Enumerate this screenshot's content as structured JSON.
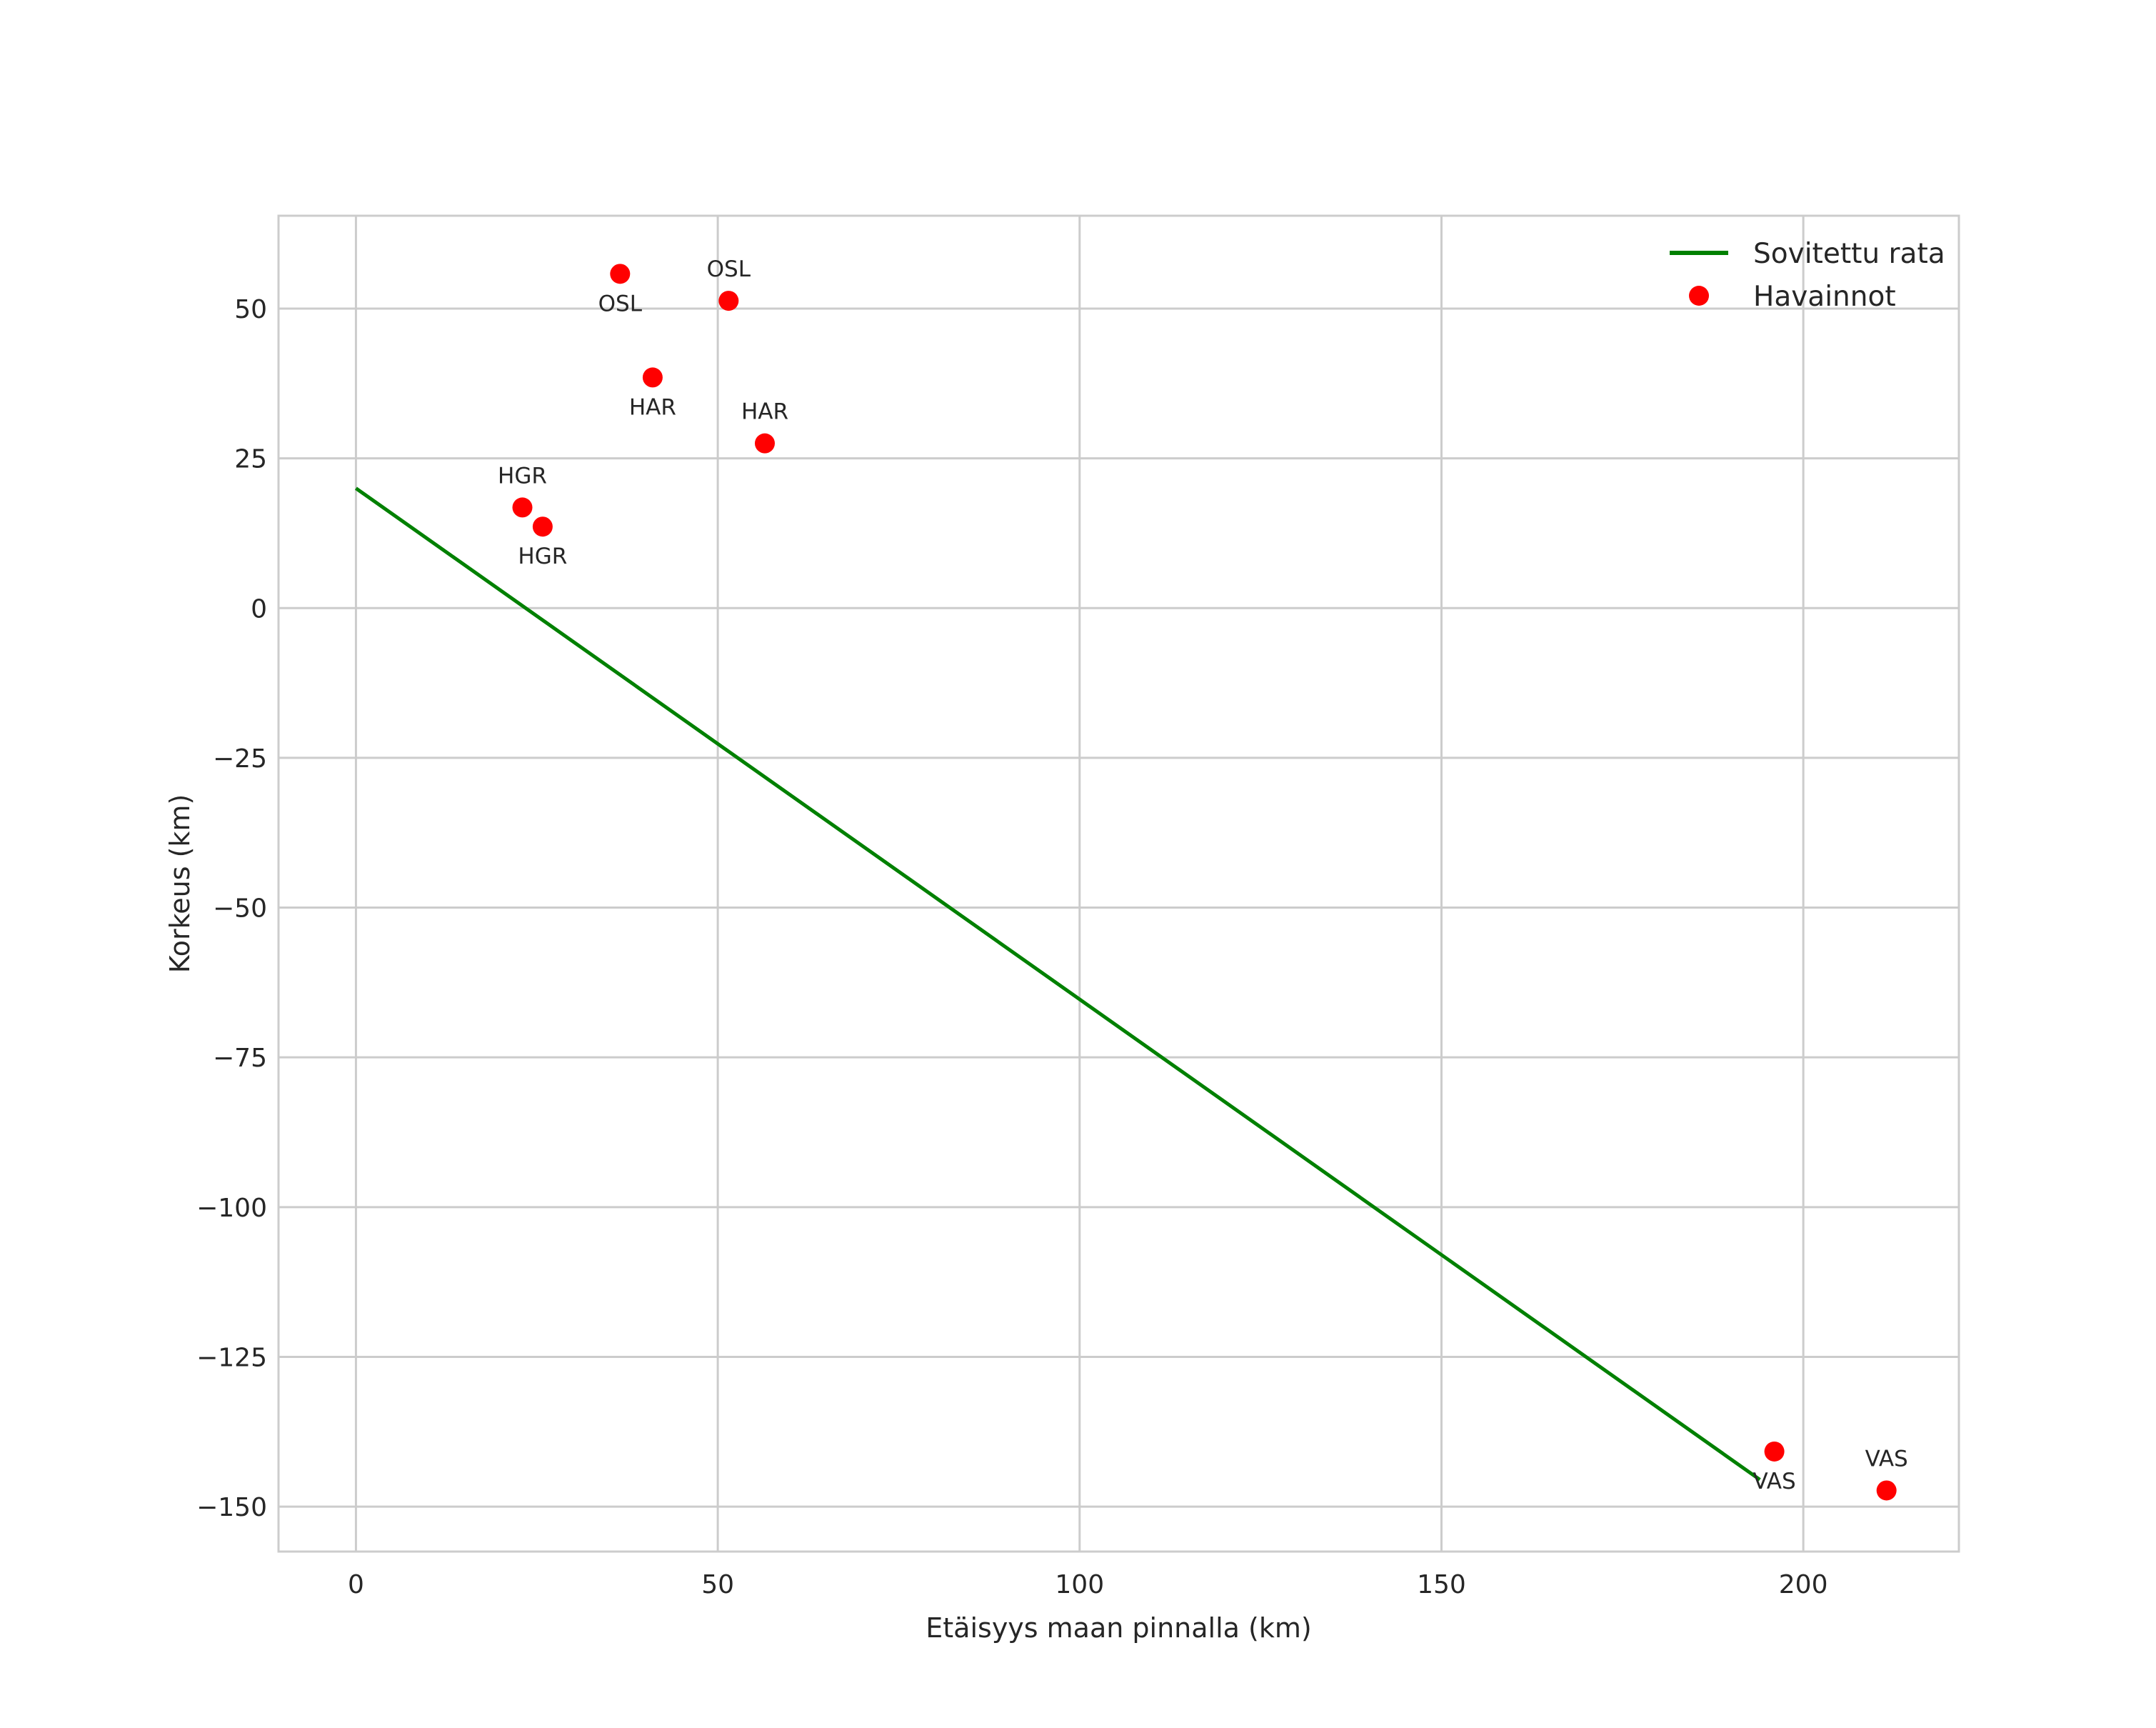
{
  "chart_data": {
    "type": "scatter",
    "title": "",
    "xlabel": "Etäisyys maan pinnalla (km)",
    "ylabel": "Korkeus (km)",
    "xlim": [
      -10.7,
      221.5
    ],
    "ylim": [
      -157.5,
      65.5
    ],
    "xticks": [
      0,
      50,
      100,
      150,
      200
    ],
    "yticks": [
      50,
      25,
      0,
      -25,
      -50,
      -75,
      -100,
      -125,
      -150
    ],
    "xtick_labels": [
      "0",
      "50",
      "100",
      "150",
      "200"
    ],
    "ytick_labels": [
      "50",
      "25",
      "0",
      "−25",
      "−50",
      "−75",
      "−100",
      "−125",
      "−150"
    ],
    "grid": true,
    "legend": {
      "position": "top-right",
      "entries": [
        "Sovitettu rata",
        "Havainnot"
      ]
    },
    "series": [
      {
        "name": "Sovitettu rata",
        "kind": "line",
        "color": "#008000",
        "x": [
          0,
          194
        ],
        "y": [
          20.0,
          -145.5
        ]
      },
      {
        "name": "Havainnot",
        "kind": "scatter",
        "color": "#ff0000",
        "points": [
          {
            "x": 36.5,
            "y": 55.8,
            "label": "OSL",
            "label_pos": "below"
          },
          {
            "x": 51.5,
            "y": 51.3,
            "label": "OSL",
            "label_pos": "above"
          },
          {
            "x": 41.0,
            "y": 38.5,
            "label": "HAR",
            "label_pos": "below"
          },
          {
            "x": 56.5,
            "y": 27.5,
            "label": "HAR",
            "label_pos": "above"
          },
          {
            "x": 23.0,
            "y": 16.8,
            "label": "HGR",
            "label_pos": "above"
          },
          {
            "x": 25.8,
            "y": 13.6,
            "label": "HGR",
            "label_pos": "below"
          },
          {
            "x": 196.0,
            "y": -140.8,
            "label": "VAS",
            "label_pos": "below"
          },
          {
            "x": 211.5,
            "y": -147.3,
            "label": "VAS",
            "label_pos": "above"
          }
        ]
      }
    ]
  },
  "colors": {
    "line": "#008000",
    "marker": "#ff0000",
    "grid": "#cccccc",
    "spine": "#cccccc",
    "text": "#262626"
  }
}
